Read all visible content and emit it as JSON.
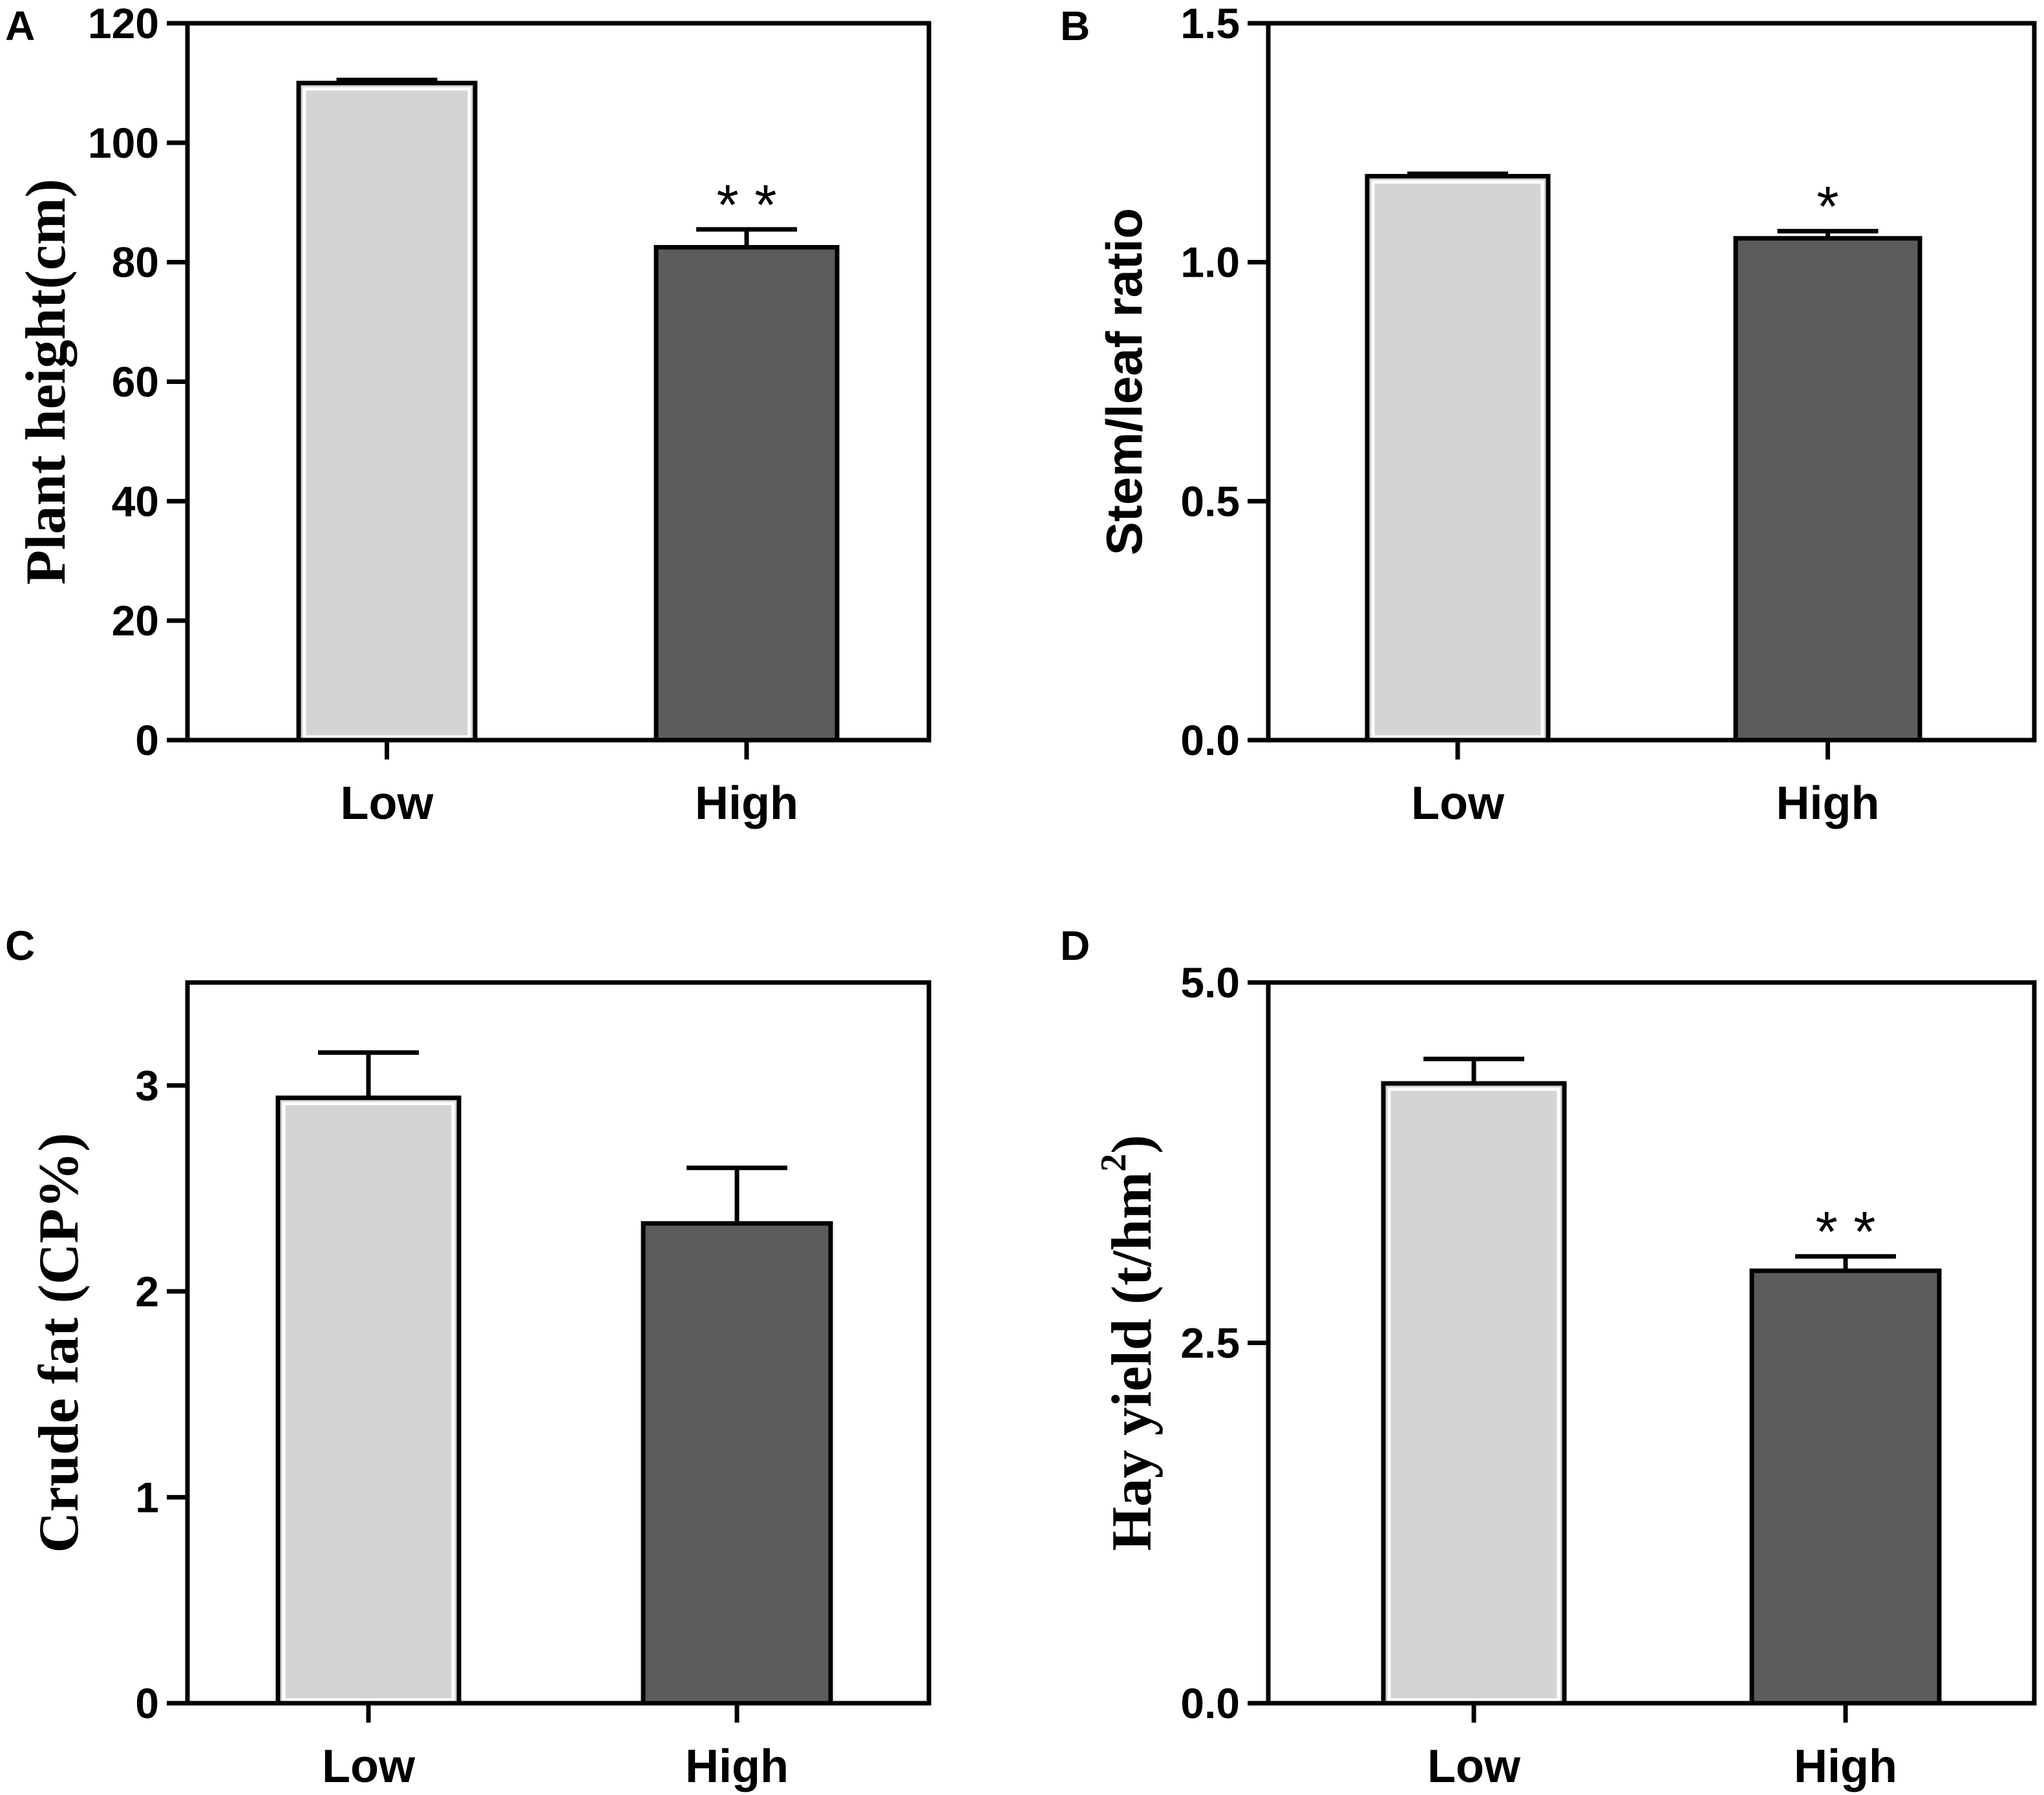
{
  "chart_data": [
    {
      "type": "bar",
      "panel": "A",
      "categories": [
        "Low",
        "High"
      ],
      "values": [
        110,
        82.5
      ],
      "errors": [
        0.5,
        3
      ],
      "significance": [
        "",
        "* *"
      ],
      "ylabel": "Plant  height(cm)",
      "ylim": [
        0,
        120
      ],
      "yticks": [
        0,
        20,
        40,
        60,
        80,
        100,
        120
      ],
      "ytick_labels": [
        "0",
        "20",
        "40",
        "60",
        "80",
        "100",
        "120"
      ],
      "bar_colors": [
        "#d4d4d4",
        "#5c5c5c"
      ],
      "ylabel_style": "serif"
    },
    {
      "type": "bar",
      "panel": "B",
      "categories": [
        "Low",
        "High"
      ],
      "values": [
        1.18,
        1.05
      ],
      "errors": [
        0.005,
        0.015
      ],
      "significance": [
        "",
        "*"
      ],
      "ylabel": "Stem/leaf ratio",
      "ylim": [
        0,
        1.5
      ],
      "yticks": [
        0,
        0.5,
        1.0,
        1.5
      ],
      "ytick_labels": [
        "0.0",
        "0.5",
        "1.0",
        "1.5"
      ],
      "bar_colors": [
        "#d4d4d4",
        "#5c5c5c"
      ],
      "ylabel_style": "sans"
    },
    {
      "type": "bar",
      "panel": "C",
      "categories": [
        "Low",
        "High"
      ],
      "values": [
        2.94,
        2.33
      ],
      "errors": [
        0.22,
        0.27
      ],
      "significance": [
        "",
        ""
      ],
      "ylabel": "Crude fat (CP%)",
      "ylim": [
        0,
        3.5
      ],
      "yticks": [
        0,
        1,
        2,
        3
      ],
      "ytick_labels": [
        "0",
        "1",
        "2",
        "3"
      ],
      "bar_colors": [
        "#d4d4d4",
        "#5c5c5c"
      ],
      "ylabel_style": "serif"
    },
    {
      "type": "bar",
      "panel": "D",
      "categories": [
        "Low",
        "High"
      ],
      "values": [
        4.3,
        3.0
      ],
      "errors": [
        0.17,
        0.1
      ],
      "significance": [
        "",
        "* *"
      ],
      "ylabel": "Hay yield (t/hm",
      "ylabel_sup": "2",
      "ylabel_end": ")",
      "ylim": [
        0,
        5
      ],
      "yticks": [
        0,
        2.5,
        5.0
      ],
      "ytick_labels": [
        "0.0",
        "2.5",
        "5.0"
      ],
      "bar_colors": [
        "#d4d4d4",
        "#5c5c5c"
      ],
      "ylabel_style": "serif"
    }
  ]
}
